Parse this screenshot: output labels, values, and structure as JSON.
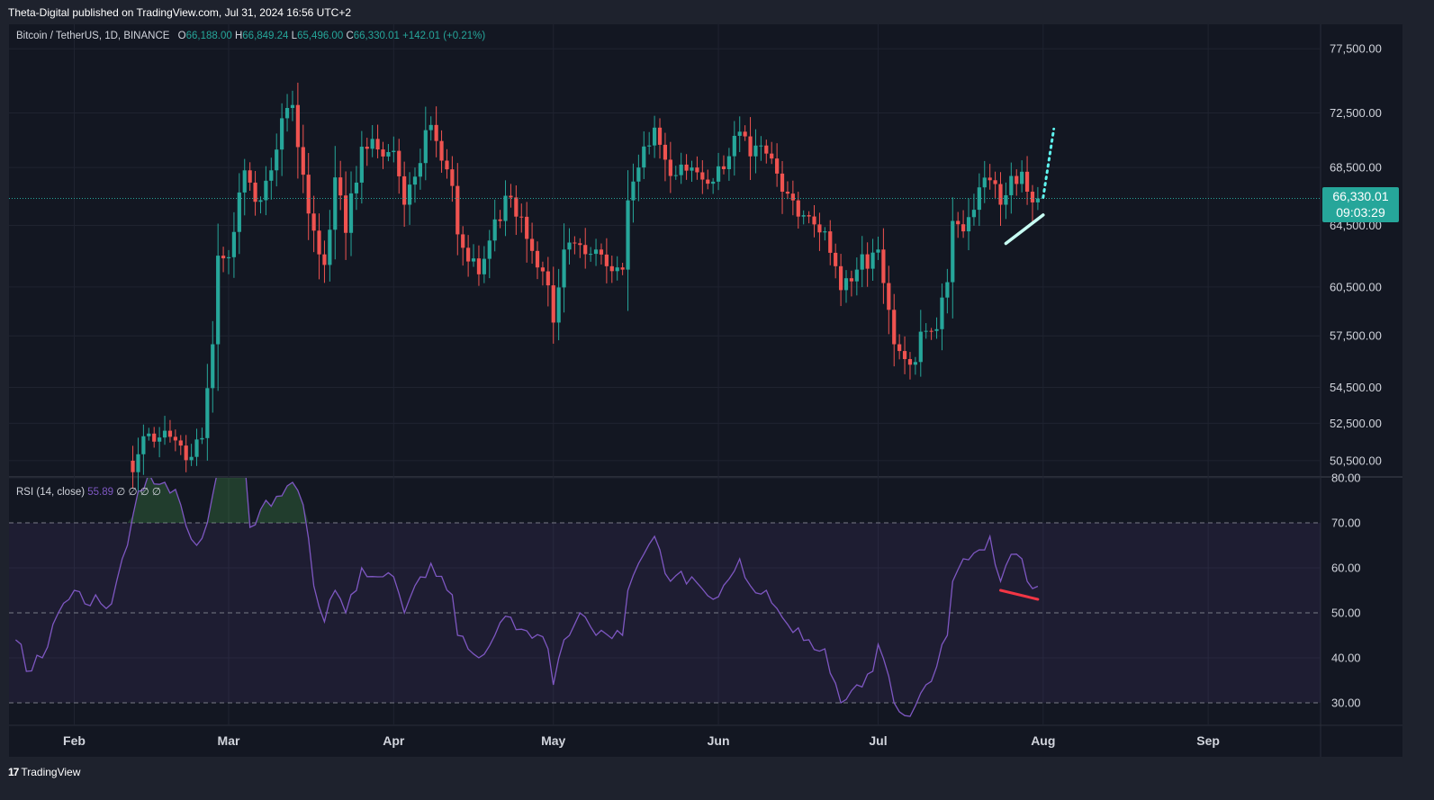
{
  "header": {
    "published": "Theta-Digital published on TradingView.com, Jul 31, 2024 16:56 UTC+2"
  },
  "legend": {
    "symbol": "Bitcoin / TetherUS, 1D, BINANCE",
    "o_label": "O",
    "o_value": "66,188.00",
    "h_label": "H",
    "h_value": "66,849.24",
    "l_label": "L",
    "l_value": "65,496.00",
    "c_label": "C",
    "c_value": "66,330.01",
    "change": "+142.01 (+0.21%)"
  },
  "rsi_legend": {
    "label": "RSI (14, close)",
    "value": "55.89",
    "extras": "∅ ∅ ∅ ∅"
  },
  "price_tag": {
    "price": "66,330.01",
    "countdown": "09:03:29"
  },
  "price_axis_labels": [
    "77,500.00",
    "72,500.00",
    "68,500.00",
    "64,500.00",
    "60,500.00",
    "57,500.00",
    "54,500.00",
    "52,500.00",
    "50,500.00"
  ],
  "rsi_axis_labels": [
    "80.00",
    "70.00",
    "60.00",
    "50.00",
    "40.00",
    "30.00"
  ],
  "month_labels": [
    "Feb",
    "Mar",
    "Apr",
    "May",
    "Jun",
    "Jul",
    "Aug",
    "Sep"
  ],
  "footer": {
    "logo": "17",
    "brand": "TradingView"
  },
  "colors": {
    "background": "#131722",
    "up": "#26a69a",
    "down": "#ef5350",
    "rsi_line": "#7e57c2",
    "rsi_band": "rgba(126,87,194,0.1)",
    "overbought_fill": "rgba(76,175,80,0.25)",
    "support_line": "#c8fff4",
    "projection": "#5ff5f0",
    "rsi_divergence": "#f23645"
  },
  "chart_data": [
    {
      "type": "candlestick",
      "title": "Bitcoin / TetherUS, 1D, BINANCE",
      "scale": "log",
      "ylim": [
        49700,
        79500
      ],
      "y_ticks": [
        77500,
        72500,
        68500,
        64500,
        60500,
        57500,
        54500,
        52500,
        50500
      ],
      "x_ticks": [
        "Feb",
        "Mar",
        "Apr",
        "May",
        "Jun",
        "Jul",
        "Aug",
        "Sep"
      ],
      "x_tick_dates": [
        "2024-02-01",
        "2024-03-01",
        "2024-04-01",
        "2024-05-01",
        "2024-06-01",
        "2024-07-01",
        "2024-08-01",
        "2024-09-01"
      ],
      "current_price": 66330.01,
      "anchors": [
        {
          "date": "2024-02-12",
          "close": 49900
        },
        {
          "date": "2024-02-14",
          "close": 51800
        },
        {
          "date": "2024-02-18",
          "close": 52100
        },
        {
          "date": "2024-02-21",
          "close": 51300
        },
        {
          "date": "2024-02-23",
          "close": 50700
        },
        {
          "date": "2024-02-25",
          "close": 51700
        },
        {
          "date": "2024-02-27",
          "close": 57000
        },
        {
          "date": "2024-02-28",
          "close": 62500
        },
        {
          "date": "2024-03-01",
          "close": 62400
        },
        {
          "date": "2024-03-04",
          "close": 68300
        },
        {
          "date": "2024-03-06",
          "close": 66100
        },
        {
          "date": "2024-03-09",
          "close": 68300
        },
        {
          "date": "2024-03-11",
          "close": 72100
        },
        {
          "date": "2024-03-13",
          "close": 73100
        },
        {
          "date": "2024-03-16",
          "close": 65300
        },
        {
          "date": "2024-03-19",
          "close": 61900
        },
        {
          "date": "2024-03-21",
          "close": 67800
        },
        {
          "date": "2024-03-23",
          "close": 64000
        },
        {
          "date": "2024-03-26",
          "close": 70000
        },
        {
          "date": "2024-03-29",
          "close": 69800
        },
        {
          "date": "2024-04-01",
          "close": 69700
        },
        {
          "date": "2024-04-03",
          "close": 65900
        },
        {
          "date": "2024-04-08",
          "close": 71600
        },
        {
          "date": "2024-04-12",
          "close": 67200
        },
        {
          "date": "2024-04-13",
          "close": 63900
        },
        {
          "date": "2024-04-17",
          "close": 61300
        },
        {
          "date": "2024-04-20",
          "close": 64900
        },
        {
          "date": "2024-04-23",
          "close": 66400
        },
        {
          "date": "2024-04-26",
          "close": 63600
        },
        {
          "date": "2024-04-30",
          "close": 60600
        },
        {
          "date": "2024-05-01",
          "close": 58300
        },
        {
          "date": "2024-05-03",
          "close": 62900
        },
        {
          "date": "2024-05-06",
          "close": 63200
        },
        {
          "date": "2024-05-09",
          "close": 62900
        },
        {
          "date": "2024-05-14",
          "close": 61600
        },
        {
          "date": "2024-05-15",
          "close": 66200
        },
        {
          "date": "2024-05-20",
          "close": 71400
        },
        {
          "date": "2024-05-23",
          "close": 67900
        },
        {
          "date": "2024-05-27",
          "close": 68500
        },
        {
          "date": "2024-05-31",
          "close": 67500
        },
        {
          "date": "2024-06-05",
          "close": 71100
        },
        {
          "date": "2024-06-07",
          "close": 69300
        },
        {
          "date": "2024-06-10",
          "close": 69500
        },
        {
          "date": "2024-06-13",
          "close": 66800
        },
        {
          "date": "2024-06-18",
          "close": 65100
        },
        {
          "date": "2024-06-21",
          "close": 64100
        },
        {
          "date": "2024-06-24",
          "close": 60300
        },
        {
          "date": "2024-06-27",
          "close": 61600
        },
        {
          "date": "2024-06-30",
          "close": 62700
        },
        {
          "date": "2024-07-01",
          "close": 62900
        },
        {
          "date": "2024-07-04",
          "close": 57000
        },
        {
          "date": "2024-07-05",
          "close": 56600
        },
        {
          "date": "2024-07-07",
          "close": 55800
        },
        {
          "date": "2024-07-10",
          "close": 57800
        },
        {
          "date": "2024-07-12",
          "close": 57900
        },
        {
          "date": "2024-07-14",
          "close": 60800
        },
        {
          "date": "2024-07-15",
          "close": 64800
        },
        {
          "date": "2024-07-17",
          "close": 64100
        },
        {
          "date": "2024-07-20",
          "close": 67100
        },
        {
          "date": "2024-07-22",
          "close": 67600
        },
        {
          "date": "2024-07-24",
          "close": 65900
        },
        {
          "date": "2024-07-26",
          "close": 67900
        },
        {
          "date": "2024-07-28",
          "close": 68200
        },
        {
          "date": "2024-07-29",
          "close": 66800
        },
        {
          "date": "2024-07-31",
          "close": 66330.01
        }
      ],
      "annotations": [
        {
          "type": "trendline",
          "from": {
            "date": "2024-07-25",
            "price": 63300
          },
          "to": {
            "date": "2024-08-01",
            "price": 65200
          }
        },
        {
          "type": "dotted_projection",
          "from": {
            "date": "2024-08-01",
            "price": 66400
          },
          "to": {
            "date": "2024-08-03",
            "price": 71300
          }
        }
      ]
    },
    {
      "type": "line",
      "title": "RSI (14, close)",
      "ylim": [
        25,
        80
      ],
      "y_ticks": [
        80,
        70,
        60,
        50,
        40,
        30
      ],
      "band": [
        30,
        70
      ],
      "midline": 50,
      "current_value": 55.89,
      "anchors": [
        {
          "date": "2024-01-21",
          "value": 44
        },
        {
          "date": "2024-01-22",
          "value": 43
        },
        {
          "date": "2024-01-23",
          "value": 37
        },
        {
          "date": "2024-01-26",
          "value": 40
        },
        {
          "date": "2024-01-29",
          "value": 50
        },
        {
          "date": "2024-02-01",
          "value": 55
        },
        {
          "date": "2024-02-03",
          "value": 52
        },
        {
          "date": "2024-02-05",
          "value": 54
        },
        {
          "date": "2024-02-08",
          "value": 52
        },
        {
          "date": "2024-02-11",
          "value": 65
        },
        {
          "date": "2024-02-13",
          "value": 77
        },
        {
          "date": "2024-02-15",
          "value": 81
        },
        {
          "date": "2024-02-18",
          "value": 79
        },
        {
          "date": "2024-02-21",
          "value": 74
        },
        {
          "date": "2024-02-24",
          "value": 65
        },
        {
          "date": "2024-02-26",
          "value": 70
        },
        {
          "date": "2024-02-28",
          "value": 82
        },
        {
          "date": "2024-03-04",
          "value": 84
        },
        {
          "date": "2024-03-05",
          "value": 69
        },
        {
          "date": "2024-03-08",
          "value": 75
        },
        {
          "date": "2024-03-11",
          "value": 76
        },
        {
          "date": "2024-03-13",
          "value": 79
        },
        {
          "date": "2024-03-15",
          "value": 74
        },
        {
          "date": "2024-03-17",
          "value": 56
        },
        {
          "date": "2024-03-19",
          "value": 48
        },
        {
          "date": "2024-03-21",
          "value": 55
        },
        {
          "date": "2024-03-23",
          "value": 50
        },
        {
          "date": "2024-03-26",
          "value": 60
        },
        {
          "date": "2024-03-29",
          "value": 58
        },
        {
          "date": "2024-04-01",
          "value": 58
        },
        {
          "date": "2024-04-03",
          "value": 50
        },
        {
          "date": "2024-04-08",
          "value": 61
        },
        {
          "date": "2024-04-12",
          "value": 54
        },
        {
          "date": "2024-04-13",
          "value": 45
        },
        {
          "date": "2024-04-17",
          "value": 40
        },
        {
          "date": "2024-04-20",
          "value": 45
        },
        {
          "date": "2024-04-23",
          "value": 49
        },
        {
          "date": "2024-04-26",
          "value": 46
        },
        {
          "date": "2024-04-30",
          "value": 42
        },
        {
          "date": "2024-05-01",
          "value": 34
        },
        {
          "date": "2024-05-03",
          "value": 44
        },
        {
          "date": "2024-05-06",
          "value": 50
        },
        {
          "date": "2024-05-09",
          "value": 45
        },
        {
          "date": "2024-05-14",
          "value": 45
        },
        {
          "date": "2024-05-15",
          "value": 55
        },
        {
          "date": "2024-05-20",
          "value": 67
        },
        {
          "date": "2024-05-23",
          "value": 57
        },
        {
          "date": "2024-05-27",
          "value": 58
        },
        {
          "date": "2024-05-31",
          "value": 53
        },
        {
          "date": "2024-06-05",
          "value": 62
        },
        {
          "date": "2024-06-07",
          "value": 56
        },
        {
          "date": "2024-06-10",
          "value": 55
        },
        {
          "date": "2024-06-13",
          "value": 49
        },
        {
          "date": "2024-06-18",
          "value": 44
        },
        {
          "date": "2024-06-21",
          "value": 42
        },
        {
          "date": "2024-06-24",
          "value": 30
        },
        {
          "date": "2024-06-27",
          "value": 34
        },
        {
          "date": "2024-06-30",
          "value": 37
        },
        {
          "date": "2024-07-01",
          "value": 43
        },
        {
          "date": "2024-07-04",
          "value": 30
        },
        {
          "date": "2024-07-05",
          "value": 28
        },
        {
          "date": "2024-07-07",
          "value": 27
        },
        {
          "date": "2024-07-10",
          "value": 34
        },
        {
          "date": "2024-07-12",
          "value": 38
        },
        {
          "date": "2024-07-14",
          "value": 45
        },
        {
          "date": "2024-07-15",
          "value": 57
        },
        {
          "date": "2024-07-17",
          "value": 62
        },
        {
          "date": "2024-07-20",
          "value": 64
        },
        {
          "date": "2024-07-22",
          "value": 67
        },
        {
          "date": "2024-07-24",
          "value": 57
        },
        {
          "date": "2024-07-26",
          "value": 63
        },
        {
          "date": "2024-07-28",
          "value": 62
        },
        {
          "date": "2024-07-29",
          "value": 57
        },
        {
          "date": "2024-07-31",
          "value": 55.89
        }
      ],
      "annotations": [
        {
          "type": "trendline",
          "from": {
            "date": "2024-07-24",
            "value": 55
          },
          "to": {
            "date": "2024-07-31",
            "value": 53
          }
        }
      ]
    }
  ]
}
